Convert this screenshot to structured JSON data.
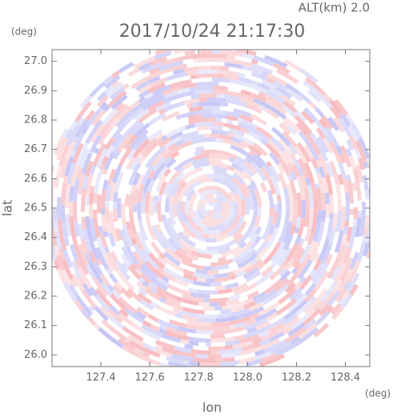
{
  "chart_data": {
    "type": "radar-field",
    "title": "2017/10/24 21:17:30",
    "subtitle": "ALT(km) 2.0",
    "x_label": "lon",
    "y_label": "lat",
    "x_unit": "(deg)",
    "y_unit": "(deg)",
    "xlim": [
      127.2,
      128.5
    ],
    "ylim": [
      25.96,
      27.04
    ],
    "xticks": [
      127.4,
      127.6,
      127.8,
      {
        "value": 128,
        "label": "128.0"
      },
      128.2,
      128.4
    ],
    "yticks": [
      {
        "value": 26,
        "label": "26.0"
      },
      26.1,
      26.2,
      26.3,
      26.4,
      26.5,
      26.6,
      26.7,
      26.8,
      26.9,
      {
        "value": 27,
        "label": "27.0"
      }
    ],
    "colors": [
      "#f7b9bd",
      "#c4c4f6"
    ]
  }
}
